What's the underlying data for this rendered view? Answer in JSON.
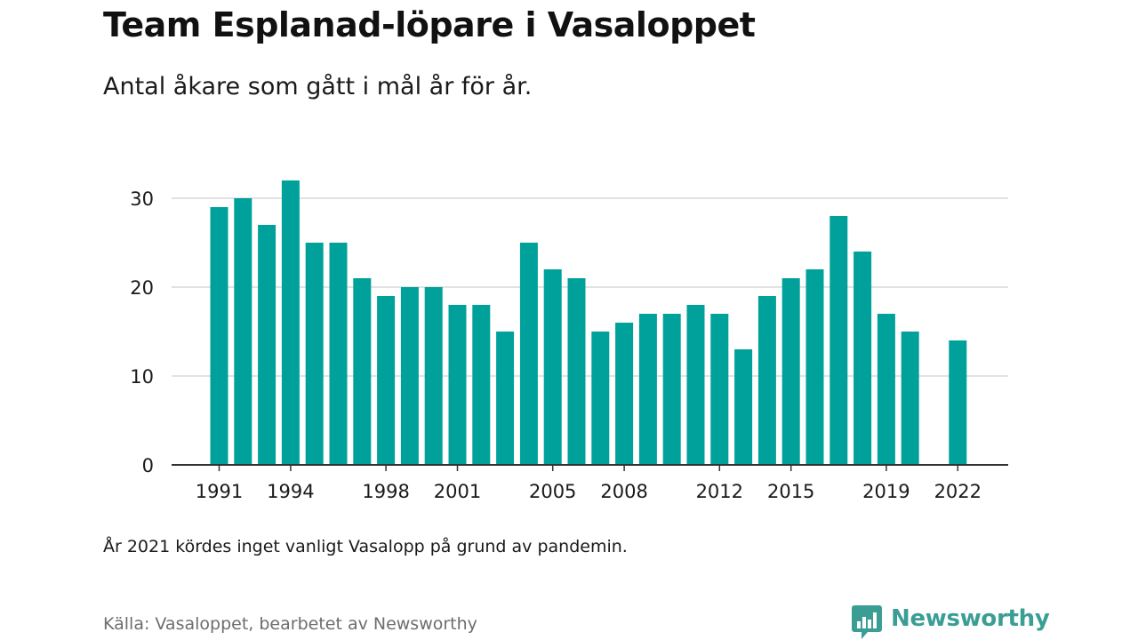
{
  "header": {
    "title": "Team Esplanad-löpare i Vasaloppet",
    "subtitle": "Antal åkare som gått i mål år för år."
  },
  "footer": {
    "note": "År 2021 kördes inget vanligt Vasalopp på grund av pandemin.",
    "source": "Källa: Vasaloppet, bearbetet av Newsworthy",
    "logo_text": "Newsworthy",
    "logo_icon": "bar-chart-speech-bubble-icon"
  },
  "colors": {
    "bar": "#00a19a",
    "grid": "#d9d9d9",
    "axis": "#333333",
    "logo": "#3a9e95"
  },
  "chart_data": {
    "type": "bar",
    "title": "Team Esplanad-löpare i Vasaloppet",
    "subtitle": "Antal åkare som gått i mål år för år.",
    "xlabel": "",
    "ylabel": "",
    "categories": [
      1991,
      1992,
      1993,
      1994,
      1995,
      1996,
      1997,
      1998,
      1999,
      2000,
      2001,
      2002,
      2003,
      2004,
      2005,
      2006,
      2007,
      2008,
      2009,
      2010,
      2011,
      2012,
      2013,
      2014,
      2015,
      2016,
      2017,
      2018,
      2019,
      2020,
      2021,
      2022
    ],
    "values": [
      29,
      30,
      27,
      32,
      25,
      25,
      21,
      19,
      20,
      20,
      18,
      18,
      15,
      25,
      22,
      21,
      15,
      16,
      17,
      17,
      18,
      17,
      13,
      19,
      21,
      22,
      28,
      24,
      17,
      15,
      null,
      14
    ],
    "x_tick_labels": [
      "1991",
      "1994",
      "1998",
      "2001",
      "2005",
      "2008",
      "2012",
      "2015",
      "2019",
      "2022"
    ],
    "y_ticks": [
      0,
      10,
      20,
      30
    ],
    "ylim": [
      0,
      33
    ],
    "grid": true,
    "legend": "none"
  }
}
